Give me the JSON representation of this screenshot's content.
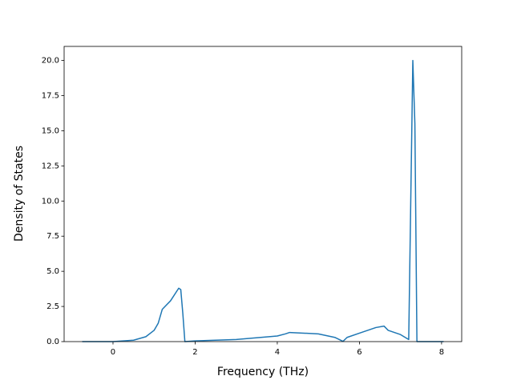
{
  "chart_data": {
    "type": "line",
    "xlabel": "Frequency (THz)",
    "ylabel": "Density of States",
    "x": [
      -0.75,
      0,
      0.5,
      0.8,
      1.0,
      1.1,
      1.2,
      1.4,
      1.6,
      1.65,
      1.7,
      1.75,
      2.0,
      3.0,
      4.0,
      4.2,
      4.3,
      5.0,
      5.4,
      5.6,
      5.7,
      6.0,
      6.4,
      6.6,
      6.7,
      7.0,
      7.2,
      7.3,
      7.35,
      7.4,
      8.05
    ],
    "values": [
      0,
      0,
      0.1,
      0.35,
      0.8,
      1.3,
      2.3,
      2.9,
      3.8,
      3.7,
      2.0,
      0,
      0.05,
      0.15,
      0.4,
      0.55,
      0.65,
      0.55,
      0.3,
      0.02,
      0.3,
      0.6,
      1.0,
      1.1,
      0.8,
      0.5,
      0.15,
      20.0,
      15.5,
      0,
      0
    ],
    "color": "#1f77b4",
    "xlim": [
      -1.19,
      8.49
    ],
    "xticks": [
      0,
      2,
      4,
      6,
      8
    ],
    "ylim": [
      0,
      21
    ],
    "yticks": [
      {
        "value": 0,
        "label": "0.0"
      },
      {
        "value": 2.5,
        "label": "2.5"
      },
      {
        "value": 5,
        "label": "5.0"
      },
      {
        "value": 7.5,
        "label": "7.5"
      },
      {
        "value": 10,
        "label": "10.0"
      },
      {
        "value": 12.5,
        "label": "12.5"
      },
      {
        "value": 15,
        "label": "15.0"
      },
      {
        "value": 17.5,
        "label": "17.5"
      },
      {
        "value": 20,
        "label": "20.0"
      }
    ]
  }
}
